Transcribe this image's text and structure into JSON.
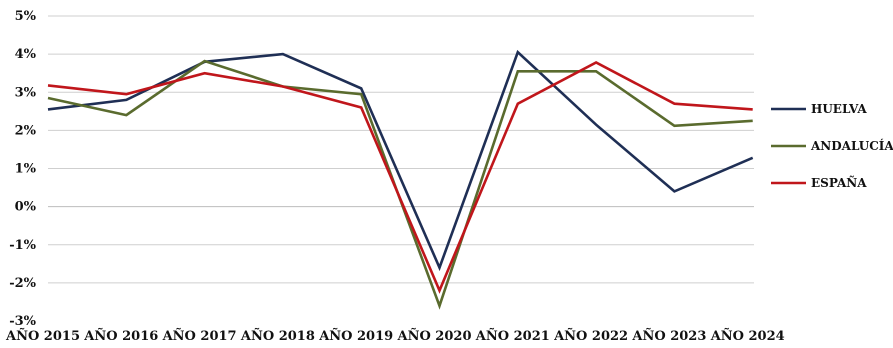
{
  "chart_data": {
    "type": "line",
    "categories": [
      "AÑO 2015",
      "AÑO 2016",
      "AÑO 2017",
      "AÑO 2018",
      "AÑO 2019",
      "AÑO 2020",
      "AÑO 2021",
      "AÑO 2022",
      "AÑO 2023",
      "AÑO 2024"
    ],
    "y_ticks": [
      "-3%",
      "-2%",
      "-1%",
      "0%",
      "1%",
      "2%",
      "3%",
      "4%",
      "5%"
    ],
    "ylim": [
      -3,
      5
    ],
    "y_unit": "%",
    "grid": "horizontal",
    "legend_position": "right",
    "series": [
      {
        "name": "HUELVA",
        "color": "#1f2f55",
        "values": [
          2.55,
          2.8,
          3.8,
          4.0,
          3.1,
          -1.6,
          4.05,
          2.15,
          0.4,
          1.28
        ]
      },
      {
        "name": "ANDALUCÍA",
        "color": "#5a6b2e",
        "values": [
          2.85,
          2.4,
          3.82,
          3.15,
          2.95,
          -2.6,
          3.55,
          3.55,
          2.12,
          2.25
        ]
      },
      {
        "name": "ESPAÑA",
        "color": "#c0161b",
        "values": [
          3.18,
          2.95,
          3.5,
          3.15,
          2.6,
          -2.2,
          2.7,
          3.78,
          2.7,
          2.55
        ]
      }
    ]
  }
}
